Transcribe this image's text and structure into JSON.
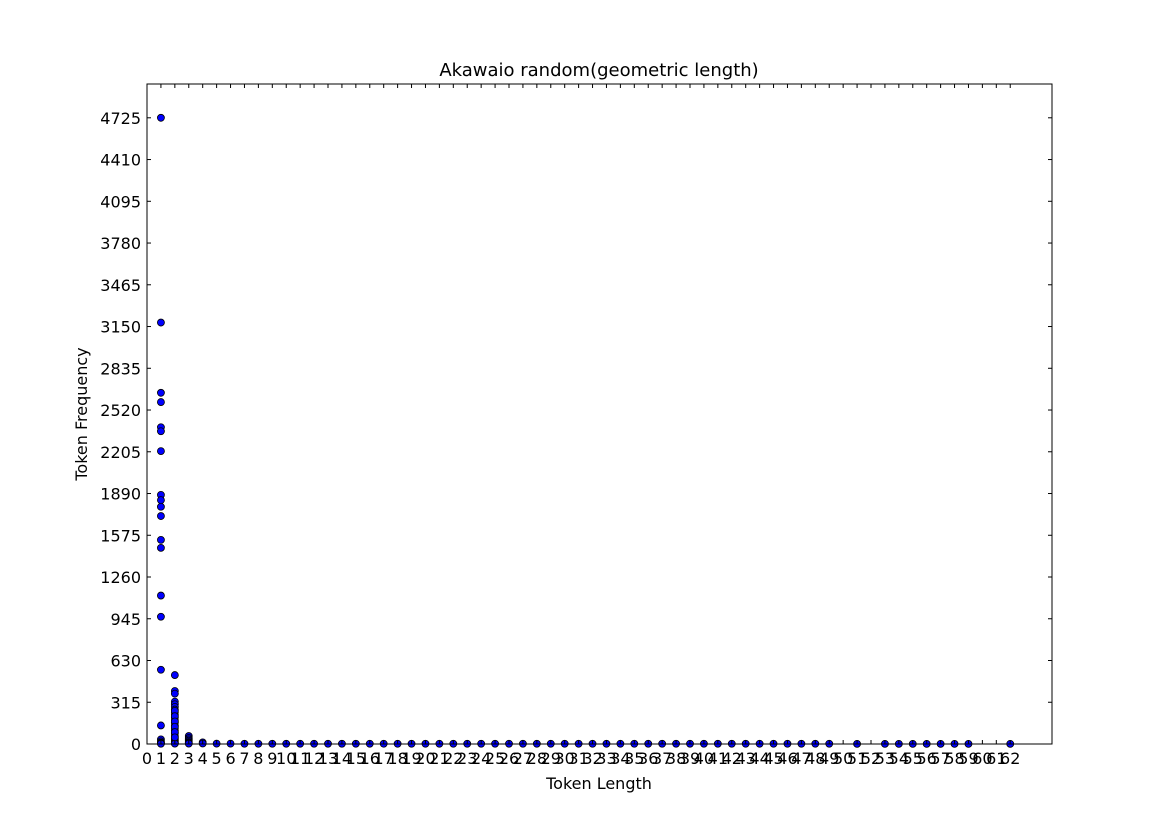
{
  "chart_data": {
    "type": "scatter",
    "title": "Akawaio random(geometric length)",
    "xlabel": "Token Length",
    "ylabel": "Token Frequency",
    "xlim": [
      0,
      65
    ],
    "ylim": [
      0,
      4980
    ],
    "grid": false,
    "xticks": [
      "0",
      "1",
      "2",
      "3",
      "4",
      "5",
      "6",
      "7",
      "8",
      "9",
      "10",
      "11",
      "12",
      "13",
      "14",
      "15",
      "16",
      "17",
      "18",
      "19",
      "20",
      "21",
      "22",
      "23",
      "24",
      "25",
      "26",
      "27",
      "28",
      "29",
      "30",
      "31",
      "32",
      "33",
      "34",
      "35",
      "36",
      "37",
      "38",
      "39",
      "40",
      "41",
      "42",
      "43",
      "44",
      "45",
      "46",
      "47",
      "48",
      "49",
      "50",
      "51",
      "52",
      "53",
      "54",
      "55",
      "56",
      "57",
      "58",
      "59",
      "60",
      "61",
      "62"
    ],
    "yticks": [
      "0",
      "315",
      "630",
      "945",
      "1260",
      "1575",
      "1890",
      "2205",
      "2520",
      "2835",
      "3150",
      "3465",
      "3780",
      "4095",
      "4410",
      "4725"
    ],
    "series": [
      {
        "x": [
          1,
          1,
          1,
          1,
          1,
          1,
          1,
          1,
          1,
          1,
          1,
          1,
          1,
          1,
          1,
          1,
          1,
          1,
          1,
          1,
          1,
          1,
          2,
          2,
          2,
          2,
          2,
          2,
          2,
          2,
          2,
          2,
          2,
          2,
          2,
          2,
          2,
          2,
          2,
          2,
          2,
          2,
          2,
          2,
          2,
          2,
          2,
          2,
          2,
          2,
          2,
          3,
          3,
          3,
          3,
          3,
          3,
          3,
          4,
          4,
          5,
          6,
          7,
          8,
          9,
          10,
          11,
          12,
          13,
          14,
          15,
          16,
          17,
          18,
          19,
          20,
          21,
          22,
          23,
          24,
          25,
          26,
          27,
          28,
          29,
          30,
          31,
          32,
          33,
          34,
          35,
          36,
          37,
          38,
          39,
          40,
          41,
          42,
          43,
          44,
          45,
          46,
          47,
          48,
          49,
          51,
          53,
          54,
          55,
          56,
          57,
          58,
          59,
          62
        ],
        "y": [
          4725,
          3180,
          2650,
          2580,
          2390,
          2360,
          2210,
          1880,
          1840,
          1790,
          1720,
          1540,
          1480,
          1120,
          960,
          560,
          140,
          35,
          20,
          10,
          5,
          2,
          520,
          400,
          380,
          320,
          300,
          280,
          260,
          240,
          220,
          200,
          180,
          160,
          140,
          120,
          100,
          80,
          60,
          40,
          30,
          20,
          10,
          5,
          3,
          250,
          210,
          170,
          130,
          90,
          50,
          60,
          45,
          35,
          25,
          15,
          8,
          3,
          12,
          4,
          3,
          3,
          2,
          2,
          2,
          2,
          2,
          2,
          2,
          2,
          2,
          2,
          2,
          2,
          2,
          2,
          2,
          2,
          2,
          2,
          2,
          2,
          2,
          2,
          2,
          2,
          2,
          2,
          2,
          2,
          2,
          2,
          2,
          2,
          2,
          2,
          2,
          2,
          2,
          2,
          2,
          2,
          2,
          2,
          2,
          1,
          1,
          1,
          1,
          1,
          1,
          1,
          1,
          1
        ]
      }
    ]
  }
}
